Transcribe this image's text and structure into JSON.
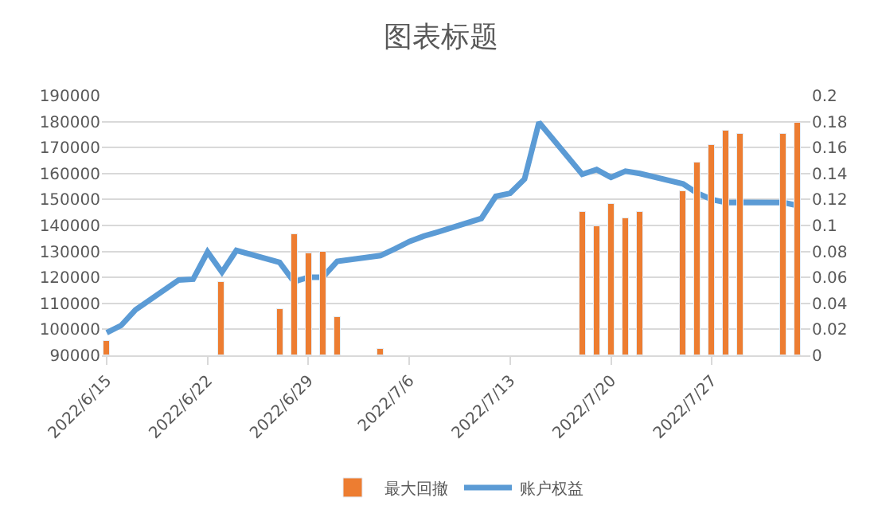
{
  "chart_data": {
    "type": "bar",
    "title": "图表标题",
    "x": [
      "2022-06-15",
      "2022-06-16",
      "2022-06-17",
      "2022-06-20",
      "2022-06-21",
      "2022-06-22",
      "2022-06-23",
      "2022-06-24",
      "2022-06-27",
      "2022-06-28",
      "2022-06-29",
      "2022-06-30",
      "2022-07-01",
      "2022-07-04",
      "2022-07-05",
      "2022-07-06",
      "2022-07-07",
      "2022-07-08",
      "2022-07-11",
      "2022-07-12",
      "2022-07-13",
      "2022-07-14",
      "2022-07-15",
      "2022-07-18",
      "2022-07-19",
      "2022-07-20",
      "2022-07-21",
      "2022-07-22",
      "2022-07-25",
      "2022-07-26",
      "2022-07-27",
      "2022-07-28",
      "2022-07-29",
      "2022-08-01",
      "2022-08-02"
    ],
    "series": [
      {
        "name": "最大回撤",
        "axis": "y2",
        "color": "#ed7d31",
        "values": [
          0.011,
          null,
          null,
          null,
          null,
          null,
          0.057,
          null,
          0.035,
          0.093,
          0.078,
          0.08,
          0.029,
          0.005,
          null,
          null,
          null,
          null,
          null,
          null,
          null,
          null,
          null,
          0.11,
          0.099,
          0.117,
          0.105,
          0.111,
          0.127,
          0.149,
          0.162,
          0.173,
          0.17,
          0.171,
          0.179
        ]
      },
      {
        "name": "账户权益",
        "type": "line",
        "color": "#5b9bd5",
        "line_style": "solid",
        "values": [
          98700,
          101500,
          107500,
          119000,
          119300,
          129800,
          122000,
          130400,
          125800,
          118300,
          120100,
          120100,
          126200,
          128400,
          131000,
          133800,
          135900,
          137500,
          142700,
          151200,
          152400,
          157900,
          179700,
          159700,
          161500,
          158500,
          160900,
          160000,
          156000,
          152400,
          150000,
          148800,
          148900,
          148800,
          147600
        ]
      }
    ],
    "xlim": [
      "2022-06-14T16:00",
      "2022-08-02T20:00"
    ],
    "xticks": [
      {
        "value": "2022-06-15",
        "label": "2022/6/15"
      },
      {
        "value": "2022-06-22",
        "label": "2022/6/22"
      },
      {
        "value": "2022-06-29",
        "label": "2022/6/29"
      },
      {
        "value": "2022-07-06",
        "label": "2022/7/6"
      },
      {
        "value": "2022-07-13",
        "label": "2022/7/13"
      },
      {
        "value": "2022-07-20",
        "label": "2022/7/20"
      },
      {
        "value": "2022-07-27",
        "label": "2022/7/27"
      }
    ],
    "ylim": [
      90000,
      190000
    ],
    "yticks": [
      90000,
      100000,
      110000,
      120000,
      130000,
      140000,
      150000,
      160000,
      170000,
      180000,
      190000
    ],
    "y2lim": [
      0,
      0.2
    ],
    "y2ticks": [
      0,
      0.02,
      0.04,
      0.06,
      0.08,
      0.1,
      0.12,
      0.14,
      0.16,
      0.18,
      0.2
    ],
    "grid": "y",
    "legend": "bottom",
    "marker": "none"
  }
}
